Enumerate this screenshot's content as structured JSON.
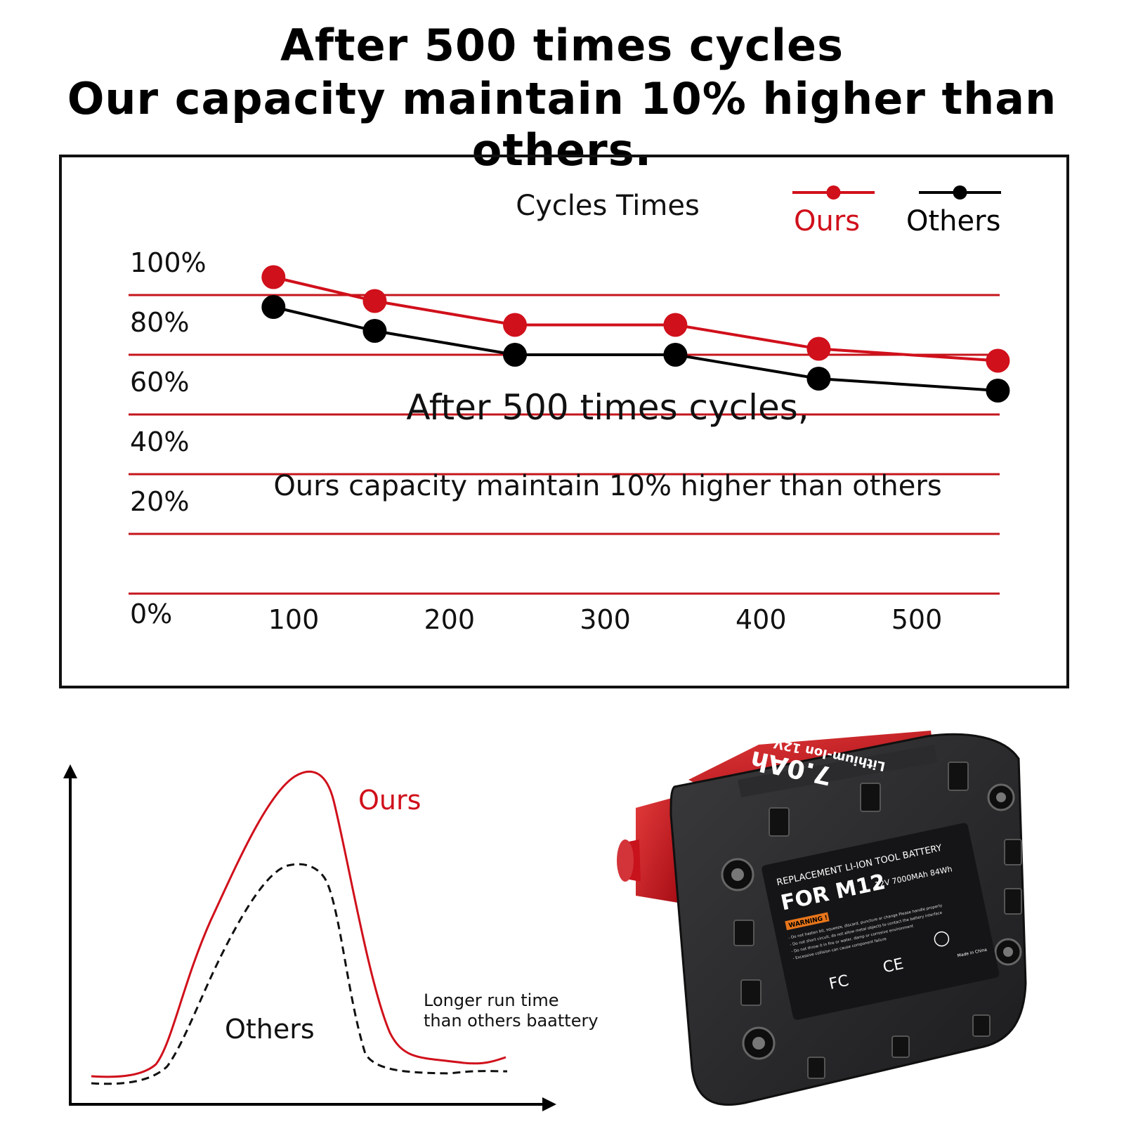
{
  "header": {
    "line1": "After 500 times cycles",
    "line2": "Our capacity maintain 10% higher than others."
  },
  "chart_data": [
    {
      "type": "line",
      "title": "Cycles Times",
      "x": [
        100,
        200,
        300,
        400,
        500
      ],
      "x_ticks": [
        "100",
        "200",
        "300",
        "400",
        "500"
      ],
      "y_ticks": [
        "0%",
        "20%",
        "40%",
        "60%",
        "80%",
        "100%"
      ],
      "ylim": [
        0,
        100
      ],
      "grid": true,
      "legend_position": "top-right",
      "colors": {
        "ours": "#d0101b",
        "others": "#000000",
        "grid": "#c4161c"
      },
      "series": [
        {
          "name": "Ours",
          "x": [
            60,
            125,
            215,
            318,
            410,
            525
          ],
          "values": [
            106,
            98,
            90,
            90,
            82,
            78
          ]
        },
        {
          "name": "Others",
          "x": [
            60,
            125,
            215,
            318,
            410,
            525
          ],
          "values": [
            96,
            88,
            80,
            80,
            72,
            68
          ]
        }
      ],
      "annotations": [
        "After 500 times cycles,",
        "Ours capacity maintain 10% higher than others"
      ]
    },
    {
      "type": "line",
      "series": [
        {
          "name": "Ours",
          "style": "solid",
          "color": "#d0101b"
        },
        {
          "name": "Others",
          "style": "dashed",
          "color": "#000000"
        }
      ],
      "annotation": [
        "Longer run time",
        "than others baattery"
      ]
    }
  ],
  "battery": {
    "header": "REPLACEMENT LI-ION TOOL BATTERY",
    "model": "FOR M12",
    "spec": "12V 7000MAh 84Wh",
    "warning": "WARNING !",
    "warning_lines": [
      "- Do not hasten bit, squeeze, discard, puncture or change Please handle properly",
      "- Do not short circuit, do not allow metal objects to contact the battery interface",
      "- Do not throw it in fire or water, damp or corrosive environment",
      "- Excessive collision can cause component failure"
    ],
    "fcc": "FC",
    "ce": "CE",
    "origin": "Made in China",
    "side_label": "7.0Ah",
    "side_brand": "Lithium-Ion 12V"
  }
}
